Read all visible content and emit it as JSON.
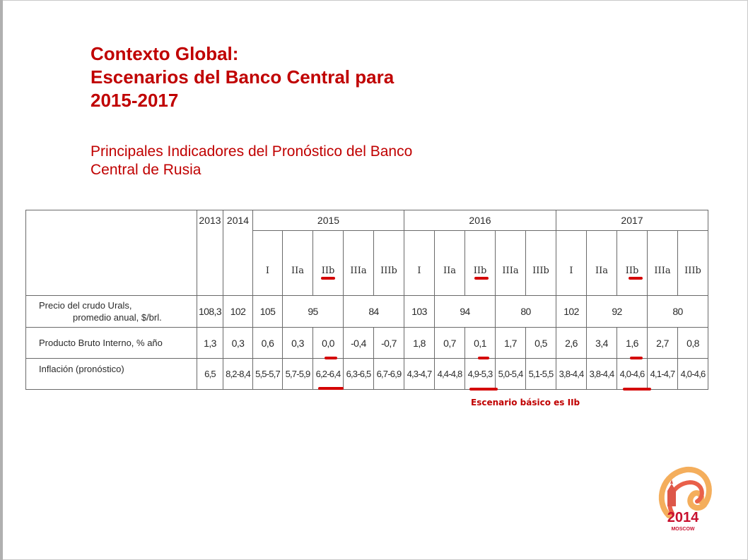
{
  "title": {
    "line1": "Contexto Global:",
    "line2": "Escenarios del Banco Central para",
    "line3": "2015-2017"
  },
  "subtitle": {
    "line1": "Principales Indicadores del Pronóstico del Banco",
    "line2": "Central de Rusia"
  },
  "table": {
    "years": [
      "2013",
      "2014",
      "2015",
      "2016",
      "2017"
    ],
    "scenarios_2015": [
      "I",
      "IIa",
      "IIb",
      "IIIa",
      "IIIb"
    ],
    "scenarios_2016": [
      "I",
      "IIa",
      "IIb",
      "IIIa",
      "IIIb"
    ],
    "scenarios_2017": [
      "I",
      "IIa",
      "IIb",
      "IIIa",
      "IIIb"
    ],
    "rows": {
      "oil": {
        "label_line1": "Precio del crudo Urals,",
        "label_line2": "promedio anual, $/brl.",
        "y2013": "108,3",
        "y2014": "102",
        "y2015_I": "105",
        "y2015_IIab": "95",
        "y2015_IIIab": "84",
        "y2016_I": "103",
        "y2016_IIab": "94",
        "y2016_IIIab": "80",
        "y2017_I": "102",
        "y2017_IIab": "92",
        "y2017_IIIab": "80"
      },
      "gdp": {
        "label": "Producto Bruto Interno, % año",
        "values": [
          "1,3",
          "0,3",
          "0,6",
          "0,3",
          "0,0",
          "-0,4",
          "-0,7",
          "1,8",
          "0,7",
          "0,1",
          "1,7",
          "0,5",
          "2,6",
          "3,4",
          "1,6",
          "2,7",
          "0,8"
        ]
      },
      "inflation": {
        "label": "Inflación (pronóstico)",
        "values": [
          "6,5",
          "8,2-8,4",
          "5,5-5,7",
          "5,7-5,9",
          "6,2-6,4",
          "6,3-6,5",
          "6,7-6,9",
          "4,3-4,7",
          "4,4-4,8",
          "4,9-5,3",
          "5,0-5,4",
          "5,1-5,5",
          "3,8-4,4",
          "3,8-4,4",
          "4,0-4,6",
          "4,1-4,7",
          "4,0-4,6"
        ]
      }
    }
  },
  "note": "Escenario básico es IIb",
  "logo": {
    "year_text": "2014",
    "city_text": "MOSCOW"
  },
  "colors": {
    "title": "#c00000",
    "highlight": "#d40000"
  }
}
